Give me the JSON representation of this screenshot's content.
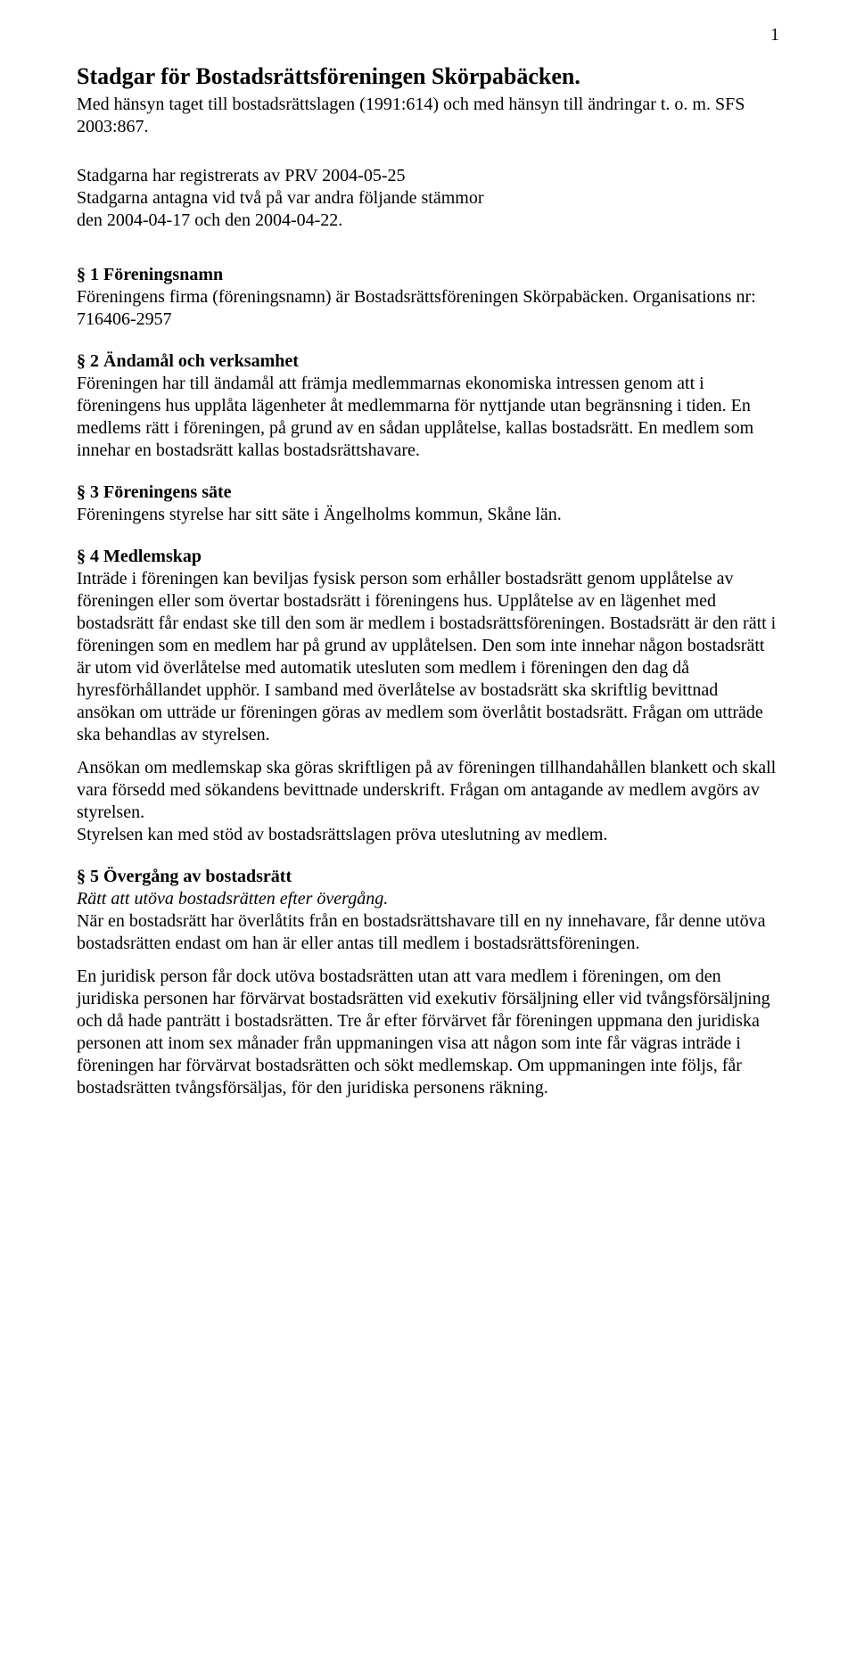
{
  "page_number": "1",
  "title": "Stadgar för Bostadsrättsföreningen Skörpabäcken.",
  "subtitle": "Med hänsyn taget till bostadsrättslagen (1991:614) och med hänsyn till ändringar t. o. m. SFS 2003:867.",
  "intro": "Stadgarna har registrerats av PRV 2004-05-25\nStadgarna antagna vid två på var andra följande stämmor\nden 2004-04-17 och den 2004-04-22.",
  "sections": [
    {
      "heading": "§ 1 Föreningsnamn",
      "body": "Föreningens firma (föreningsnamn) är Bostadsrättsföreningen Skörpabäcken. Organisations nr: 716406-2957"
    },
    {
      "heading": "§ 2 Ändamål och verksamhet",
      "body": "Föreningen har till ändamål att främja medlemmarnas ekonomiska intressen genom att i föreningens hus upplåta lägenheter åt medlemmarna för nyttjande utan begränsning i tiden. En medlems rätt i föreningen, på grund av en sådan upplåtelse, kallas bostadsrätt. En medlem som innehar en bostadsrätt kallas bostadsrättshavare."
    },
    {
      "heading": "§ 3 Föreningens säte",
      "body": "Föreningens styrelse har sitt säte i Ängelholms kommun, Skåne län."
    },
    {
      "heading": "§ 4 Medlemskap",
      "body": "Inträde i föreningen kan beviljas fysisk person som erhåller bostadsrätt genom upplåtelse av föreningen eller som övertar bostadsrätt i föreningens hus. Upplåtelse av en lägenhet med bostadsrätt får endast ske till den som är medlem i bostadsrättsföreningen. Bostadsrätt är den rätt i föreningen som en medlem har på grund av upplåtelsen. Den som inte innehar någon bostadsrätt är utom vid överlåtelse med automatik utesluten som medlem i föreningen den dag då hyresförhållandet upphör. I samband med överlåtelse av bostadsrätt ska skriftlig bevittnad ansökan om utträde ur föreningen göras av medlem som överlåtit bostadsrätt. Frågan om utträde ska behandlas av styrelsen.",
      "body2": "Ansökan om medlemskap ska göras skriftligen på av föreningen tillhandahållen blankett och skall vara försedd med sökandens bevittnade underskrift. Frågan om antagande av medlem avgörs av styrelsen.\nStyrelsen kan med stöd av bostadsrättslagen pröva uteslutning av medlem."
    },
    {
      "heading": "§ 5 Övergång av bostadsrätt",
      "subhead_italic": "Rätt att utöva bostadsrätten efter övergång.",
      "body": "När en bostadsrätt har överlåtits från en bostadsrättshavare till en ny innehavare, får denne utöva bostadsrätten endast om han är eller antas till medlem i bostadsrättsföreningen.",
      "body2": "En juridisk person får dock utöva bostadsrätten utan att vara medlem i föreningen, om den juridiska personen har förvärvat bostadsrätten vid exekutiv försäljning eller vid tvångsförsäljning och då hade panträtt i bostadsrätten. Tre år efter förvärvet får föreningen uppmana den juridiska personen att inom sex månader från uppmaningen visa att någon som inte får vägras inträde i föreningen har förvärvat bostadsrätten och sökt medlemskap. Om uppmaningen inte följs, får bostadsrätten tvångsförsäljas, för den juridiska personens räkning."
    }
  ]
}
